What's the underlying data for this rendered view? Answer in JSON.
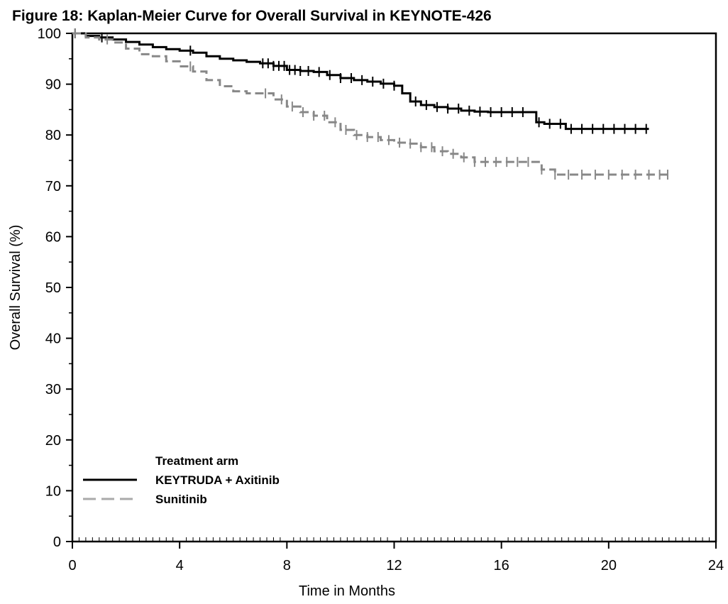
{
  "chart_data": {
    "type": "line",
    "title": "Figure 18: Kaplan-Meier Curve for Overall Survival in KEYNOTE-426",
    "xlabel": "Time in Months",
    "ylabel": "Overall Survival (%)",
    "xlim": [
      0,
      24
    ],
    "ylim": [
      0,
      100
    ],
    "x_ticks": [
      0,
      4,
      8,
      12,
      16,
      20,
      24
    ],
    "y_ticks": [
      0,
      10,
      20,
      30,
      40,
      50,
      60,
      70,
      80,
      90,
      100
    ],
    "step": true,
    "grid": false,
    "legend": {
      "title": "Treatment arm",
      "position": "bottom-left"
    },
    "series": [
      {
        "name": "KEYTRUDA + Axitinib",
        "color": "#000000",
        "dash": "solid",
        "x": [
          0,
          0.5,
          1.0,
          1.5,
          2.0,
          2.5,
          3.0,
          3.5,
          4.0,
          4.5,
          5.0,
          5.5,
          6.0,
          6.5,
          7.0,
          7.5,
          8.0,
          8.5,
          9.0,
          9.5,
          10.0,
          10.5,
          11.0,
          11.5,
          12.0,
          12.3,
          12.6,
          13.0,
          13.5,
          14.0,
          14.5,
          15.0,
          15.5,
          16.0,
          16.5,
          17.0,
          17.3,
          17.6,
          18.0,
          18.4,
          19.0,
          20.0,
          21.5
        ],
        "y": [
          100,
          99.5,
          99.2,
          98.8,
          98.3,
          97.8,
          97.3,
          96.9,
          96.6,
          96.2,
          95.5,
          95.0,
          94.7,
          94.4,
          94.1,
          93.6,
          92.8,
          92.6,
          92.4,
          91.8,
          91.2,
          90.8,
          90.5,
          90.1,
          89.7,
          88.2,
          86.6,
          85.9,
          85.5,
          85.2,
          84.8,
          84.6,
          84.5,
          84.5,
          84.5,
          84.5,
          82.5,
          82.2,
          82.2,
          81.2,
          81.2,
          81.2,
          81.2
        ],
        "censor_x": [
          0.1,
          1.1,
          4.4,
          7.1,
          7.3,
          7.5,
          7.7,
          7.9,
          8.1,
          8.3,
          8.5,
          8.8,
          9.2,
          9.6,
          10.0,
          10.4,
          10.8,
          11.2,
          11.6,
          12.0,
          12.8,
          13.2,
          13.6,
          14.0,
          14.4,
          14.8,
          15.2,
          15.6,
          16.0,
          16.4,
          16.8,
          17.4,
          17.8,
          18.2,
          18.6,
          19.0,
          19.4,
          19.8,
          20.2,
          20.6,
          21.0,
          21.4
        ]
      },
      {
        "name": "Sunitinib",
        "color": "#888888",
        "dash": "dashed",
        "x": [
          0,
          0.5,
          1.0,
          1.5,
          2.0,
          2.5,
          3.0,
          3.5,
          4.0,
          4.5,
          5.0,
          5.5,
          6.0,
          6.5,
          7.0,
          7.5,
          8.0,
          8.5,
          9.0,
          9.5,
          10.0,
          10.5,
          11.0,
          11.5,
          12.0,
          12.5,
          13.0,
          13.5,
          14.0,
          14.5,
          15.0,
          15.5,
          16.0,
          16.5,
          17.0,
          17.5,
          18.0,
          19.0,
          20.0,
          22.2
        ],
        "y": [
          100,
          99.2,
          98.8,
          98.2,
          97.0,
          95.9,
          95.5,
          94.5,
          93.5,
          92.5,
          90.8,
          89.6,
          88.6,
          88.2,
          88.2,
          87.0,
          85.6,
          84.5,
          83.8,
          82.5,
          81.0,
          80.0,
          79.6,
          79.0,
          78.5,
          78.3,
          77.6,
          76.8,
          76.3,
          75.6,
          74.7,
          74.7,
          74.7,
          74.7,
          74.7,
          73.2,
          72.2,
          72.2,
          72.2,
          72.2
        ],
        "censor_x": [
          0.1,
          1.3,
          4.4,
          7.2,
          7.8,
          8.2,
          8.6,
          9.0,
          9.4,
          9.8,
          10.2,
          10.6,
          11.0,
          11.4,
          11.8,
          12.2,
          12.6,
          13.0,
          13.4,
          13.8,
          14.2,
          14.6,
          15.0,
          15.4,
          15.8,
          16.2,
          16.6,
          17.0,
          17.5,
          18.0,
          18.5,
          19.0,
          19.5,
          20.0,
          20.5,
          21.0,
          21.5,
          21.9,
          22.2
        ]
      }
    ]
  }
}
